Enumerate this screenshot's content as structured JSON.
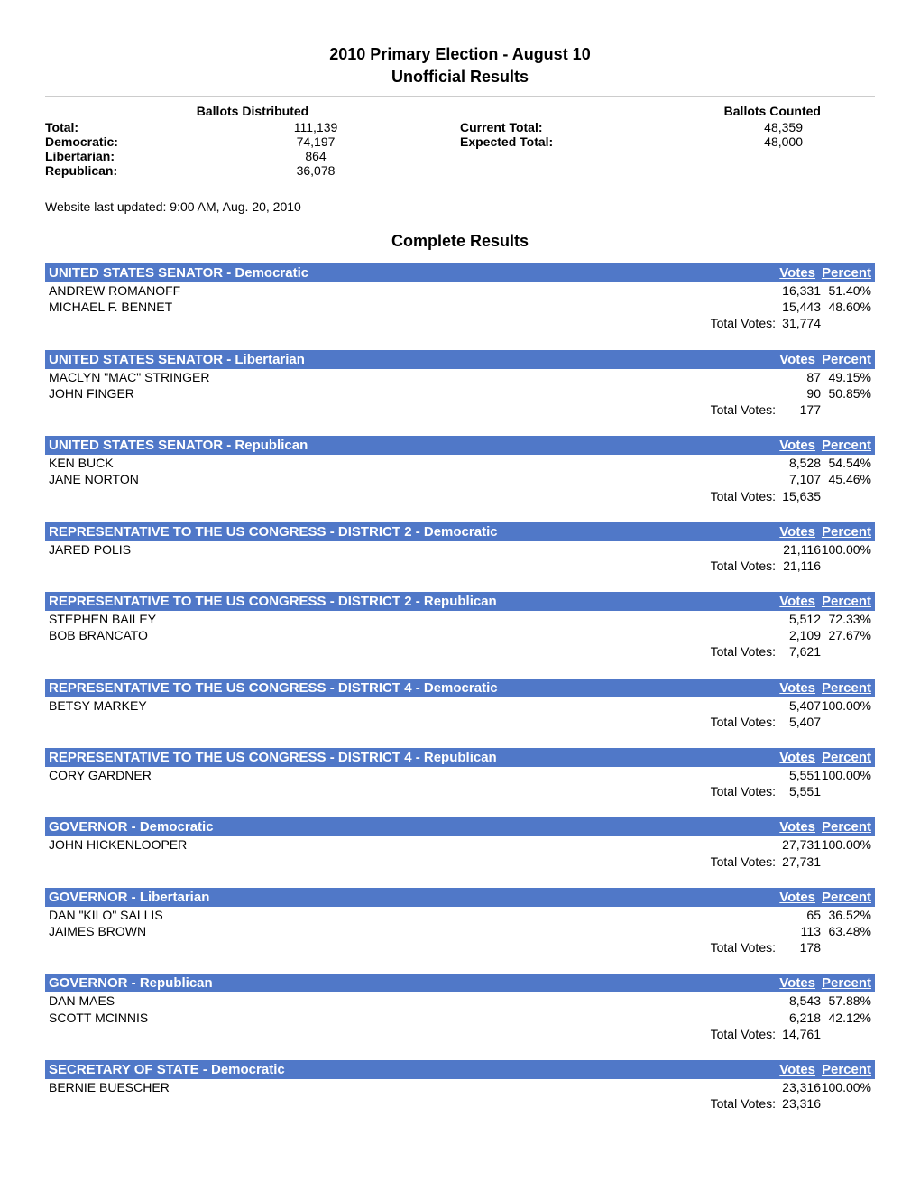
{
  "header": {
    "title": "2010 Primary Election - August 10",
    "subtitle": "Unofficial Results"
  },
  "summary": {
    "ballots_distributed_label": "Ballots Distributed",
    "ballots_counted_label": "Ballots Counted",
    "total_label": "Total:",
    "total_distributed": "111,139",
    "democratic_label": "Democratic:",
    "democratic_distributed": "74,197",
    "libertarian_label": "Libertarian:",
    "libertarian_distributed": "864",
    "republican_label": "Republican:",
    "republican_distributed": "36,078",
    "current_total_label": "Current Total:",
    "current_total_value": "48,359",
    "expected_total_label": "Expected Total:",
    "expected_total_value": "48,000"
  },
  "updated": "Website last updated: 9:00 AM, Aug. 20, 2010",
  "section_title": "Complete Results",
  "header_votes": "Votes",
  "header_percent": "Percent",
  "total_votes_label": "Total Votes:",
  "races": [
    {
      "title": "UNITED STATES SENATOR - Democratic",
      "candidates": [
        {
          "name": "ANDREW ROMANOFF",
          "votes": "16,331",
          "percent": "51.40%"
        },
        {
          "name": "MICHAEL F. BENNET",
          "votes": "15,443",
          "percent": "48.60%"
        }
      ],
      "total": "31,774"
    },
    {
      "title": "UNITED STATES SENATOR - Libertarian",
      "candidates": [
        {
          "name": "MACLYN \"MAC\" STRINGER",
          "votes": "87",
          "percent": "49.15%"
        },
        {
          "name": "JOHN FINGER",
          "votes": "90",
          "percent": "50.85%"
        }
      ],
      "total": "177"
    },
    {
      "title": "UNITED STATES SENATOR - Republican",
      "candidates": [
        {
          "name": "KEN BUCK",
          "votes": "8,528",
          "percent": "54.54%"
        },
        {
          "name": "JANE NORTON",
          "votes": "7,107",
          "percent": "45.46%"
        }
      ],
      "total": "15,635"
    },
    {
      "title": "REPRESENTATIVE TO THE US CONGRESS - DISTRICT 2 - Democratic",
      "candidates": [
        {
          "name": "JARED POLIS",
          "votes": "21,116",
          "percent": "100.00%"
        }
      ],
      "total": "21,116"
    },
    {
      "title": "REPRESENTATIVE TO THE US CONGRESS - DISTRICT 2 - Republican",
      "candidates": [
        {
          "name": "STEPHEN BAILEY",
          "votes": "5,512",
          "percent": "72.33%"
        },
        {
          "name": "BOB BRANCATO",
          "votes": "2,109",
          "percent": "27.67%"
        }
      ],
      "total": "7,621"
    },
    {
      "title": "REPRESENTATIVE TO THE US CONGRESS - DISTRICT 4 - Democratic",
      "candidates": [
        {
          "name": "BETSY MARKEY",
          "votes": "5,407",
          "percent": "100.00%"
        }
      ],
      "total": "5,407"
    },
    {
      "title": "REPRESENTATIVE TO THE US CONGRESS - DISTRICT 4 - Republican",
      "candidates": [
        {
          "name": "CORY GARDNER",
          "votes": "5,551",
          "percent": "100.00%"
        }
      ],
      "total": "5,551"
    },
    {
      "title": "GOVERNOR - Democratic",
      "candidates": [
        {
          "name": "JOHN HICKENLOOPER",
          "votes": "27,731",
          "percent": "100.00%"
        }
      ],
      "total": "27,731"
    },
    {
      "title": "GOVERNOR - Libertarian",
      "candidates": [
        {
          "name": "DAN \"KILO\" SALLIS",
          "votes": "65",
          "percent": "36.52%"
        },
        {
          "name": "JAIMES BROWN",
          "votes": "113",
          "percent": "63.48%"
        }
      ],
      "total": "178"
    },
    {
      "title": "GOVERNOR - Republican",
      "candidates": [
        {
          "name": "DAN MAES",
          "votes": "8,543",
          "percent": "57.88%"
        },
        {
          "name": "SCOTT MCINNIS",
          "votes": "6,218",
          "percent": "42.12%"
        }
      ],
      "total": "14,761"
    },
    {
      "title": "SECRETARY OF STATE - Democratic",
      "candidates": [
        {
          "name": "BERNIE BUESCHER",
          "votes": "23,316",
          "percent": "100.00%"
        }
      ],
      "total": "23,316"
    }
  ]
}
